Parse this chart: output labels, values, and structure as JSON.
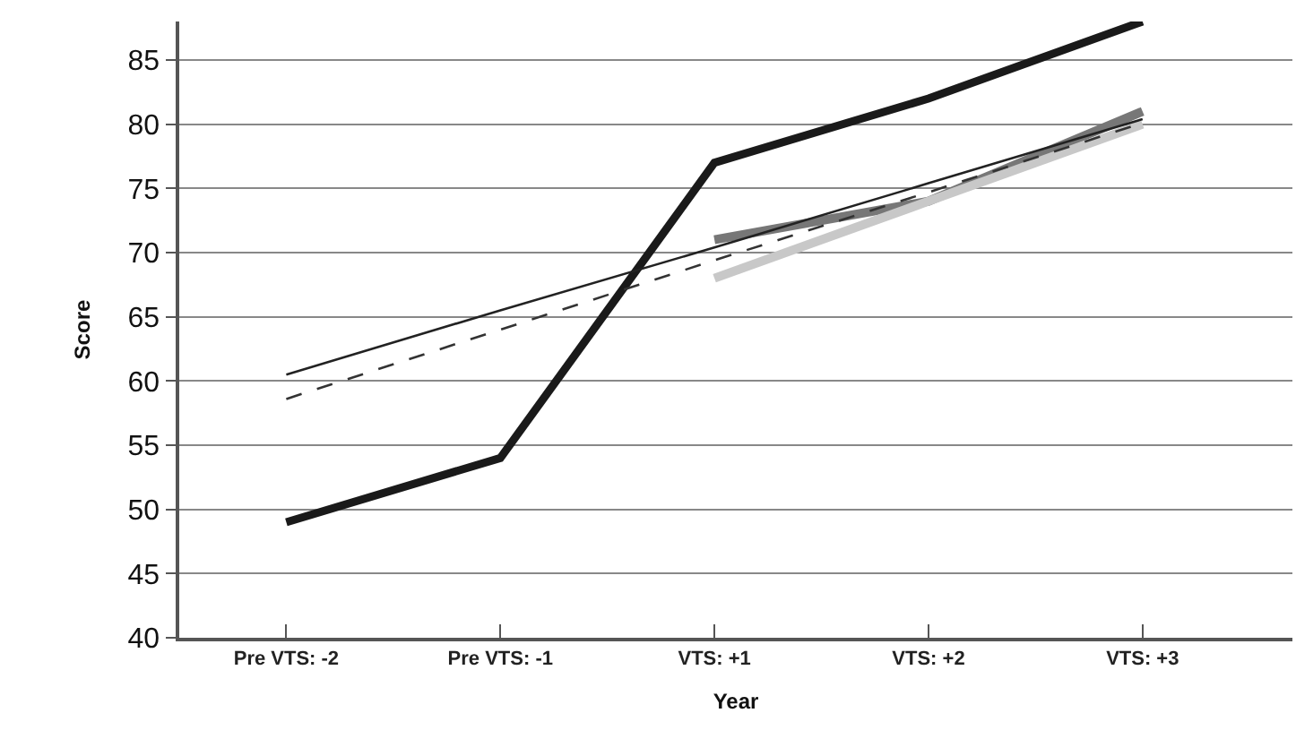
{
  "chart_data": {
    "type": "line",
    "xlabel": "Year",
    "ylabel": "Score",
    "categories": [
      "Pre VTS: -2",
      "Pre VTS: -1",
      "VTS: +1",
      "VTS: +2",
      "VTS: +3"
    ],
    "ylim": [
      40,
      88
    ],
    "yticks": [
      40,
      45,
      50,
      55,
      60,
      65,
      70,
      75,
      80,
      85
    ],
    "grid": "y",
    "marker": "none",
    "series": [
      {
        "color": "#1a1a1a",
        "values": [
          49,
          54,
          77,
          82,
          88
        ]
      },
      {
        "color": "#777777",
        "values": [
          null,
          null,
          71,
          74,
          81
        ]
      },
      {
        "color": "#c8c8c8",
        "values": [
          null,
          null,
          68,
          74,
          80
        ]
      },
      {
        "color": "#222222",
        "values": [
          60.5,
          65.5,
          70.4,
          75.4,
          80.4
        ]
      },
      {
        "color": "#333333",
        "line_style": "dashed",
        "values": [
          58.6,
          64,
          69.4,
          74.7,
          80.1
        ]
      }
    ]
  }
}
